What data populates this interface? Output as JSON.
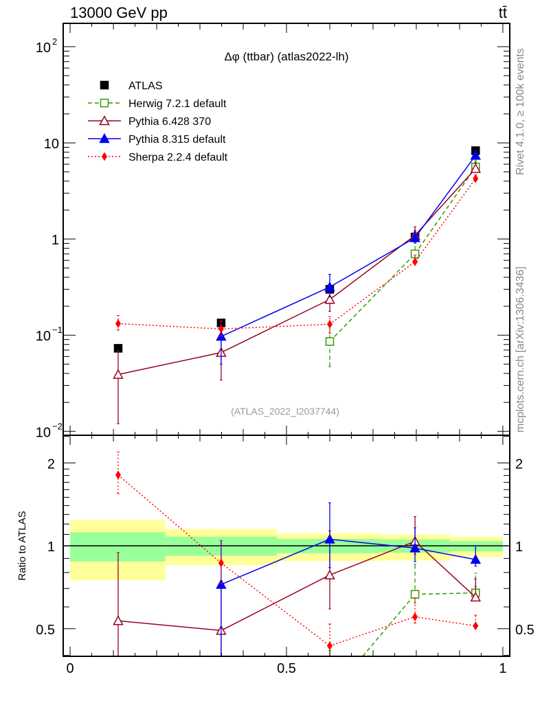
{
  "header": {
    "left": "13000 GeV pp",
    "right": "tt̄"
  },
  "side_text": {
    "top": "Rivet 4.1.0, ≥ 100k events",
    "bottom": "mcplots.cern.ch [arXiv:1306.3436]"
  },
  "chart_data": [
    {
      "type": "line",
      "title": "Δφ (ttbar) (atlas2022-lh)",
      "annotation": "(ATLAS_2022_I2037744)",
      "xlabel": "",
      "ylabel": "",
      "xlim": [
        -0.016,
        1.016
      ],
      "ylim": [
        0.0091,
        175
      ],
      "yscale": "log",
      "yticks": [
        {
          "v": 100,
          "label": "10",
          "exp": "2"
        },
        {
          "v": 10,
          "label": "10",
          "exp": ""
        },
        {
          "v": 1,
          "label": "1",
          "exp": ""
        },
        {
          "v": 0.1,
          "label": "10",
          "exp": "−1"
        },
        {
          "v": 0.01,
          "label": "10",
          "exp": "−2"
        }
      ],
      "legend_position": "top-left",
      "x": [
        0.111,
        0.349,
        0.6,
        0.797,
        0.937
      ],
      "series": [
        {
          "name": "ATLAS",
          "color": "#000000",
          "style": "points",
          "marker": "square-filled",
          "values": [
            0.073,
            0.134,
            0.3,
            1.05,
            8.3
          ],
          "err": [
            [
              0.071,
              0.075
            ],
            [
              0.131,
              0.137
            ],
            [
              0.29,
              0.31
            ],
            [
              1.03,
              1.07
            ],
            [
              8.1,
              8.5
            ]
          ]
        },
        {
          "name": "Herwig 7.2.1 default",
          "color": "#339900",
          "style": "dashed",
          "marker": "square-open",
          "values": [
            null,
            null,
            0.086,
            0.7,
            5.6
          ],
          "err": [
            null,
            null,
            [
              0.047,
              0.125
            ],
            [
              0.65,
              0.9
            ],
            [
              5.9,
              6.6
            ]
          ]
        },
        {
          "name": "Pythia 6.428 370",
          "color": "#990022",
          "style": "solid",
          "marker": "triangle-open",
          "values": [
            0.039,
            0.066,
            0.235,
            1.09,
            5.4
          ],
          "err": [
            [
              0.012,
              0.069
            ],
            [
              0.034,
              0.1
            ],
            [
              0.177,
              0.34
            ],
            [
              0.98,
              1.34
            ],
            [
              5.4,
              6.3
            ]
          ]
        },
        {
          "name": "Pythia 8.315 default",
          "color": "#0000ee",
          "style": "solid",
          "marker": "triangle-filled",
          "values": [
            null,
            0.097,
            0.317,
            1.03,
            7.4
          ],
          "err": [
            null,
            [
              0.05,
              0.14
            ],
            [
              0.25,
              0.43
            ],
            [
              0.92,
              1.22
            ],
            [
              7.0,
              8.3
            ]
          ]
        },
        {
          "name": "Sherpa 2.2.4 default",
          "color": "#ff0000",
          "style": "dotted",
          "marker": "diamond-filled",
          "values": [
            0.132,
            0.116,
            0.13,
            0.58,
            4.25
          ],
          "err": [
            [
              0.113,
              0.16
            ],
            [
              0.098,
              0.14
            ],
            [
              0.105,
              0.156
            ],
            [
              0.55,
              0.68
            ],
            [
              4.2,
              4.65
            ]
          ]
        }
      ]
    },
    {
      "type": "line",
      "ylabel": "Ratio to ATLAS",
      "yscale": "log",
      "ylim": [
        0.397,
        2.52
      ],
      "yticks": [
        {
          "v": 2,
          "label": "2"
        },
        {
          "v": 1,
          "label": "1"
        },
        {
          "v": 0.5,
          "label": "0.5"
        }
      ],
      "xticks": [
        {
          "v": 0,
          "label": "0"
        },
        {
          "v": 0.5,
          "label": "0.5"
        },
        {
          "v": 1,
          "label": "1"
        }
      ],
      "bins": [
        0,
        0.22,
        0.478,
        0.716,
        0.878,
        1.0
      ],
      "band_inner": {
        "color": "#99ff99",
        "lo": [
          0.877,
          0.92,
          0.94,
          0.945,
          0.955
        ],
        "hi": [
          1.12,
          1.08,
          1.06,
          1.055,
          1.04
        ]
      },
      "band_outer": {
        "color": "#ffff99",
        "lo": [
          0.75,
          0.85,
          0.88,
          0.885,
          0.91
        ],
        "hi": [
          1.24,
          1.15,
          1.11,
          1.1,
          1.08
        ]
      }
    }
  ]
}
